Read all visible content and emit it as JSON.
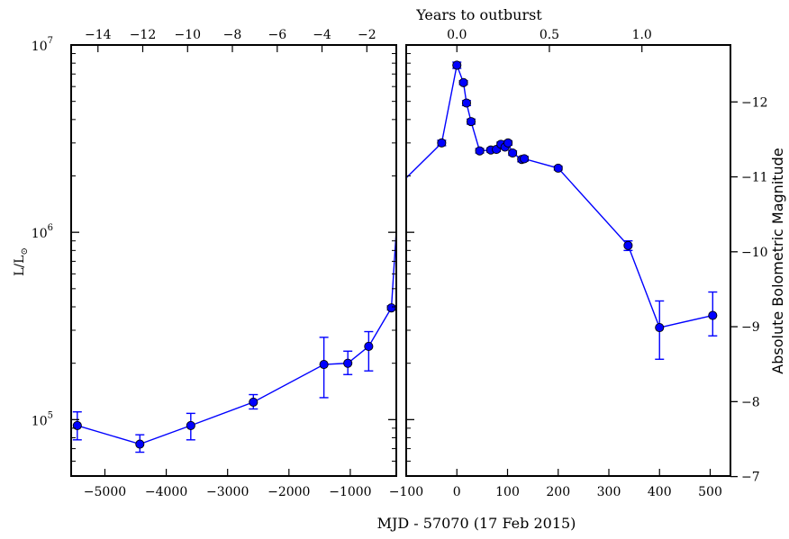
{
  "chart_data": {
    "type": "scatter",
    "top_axis_title": "Years to outburst",
    "shared_xlabel": "MJD - 57070 (17 Feb 2015)",
    "left_ylabel_main": "L/L",
    "left_ylabel_sub": "⊙",
    "right_ylabel": "Absolute Bolometric Magnitude",
    "series_color": "#0000ff",
    "marker_color": "#0000ff",
    "panels": [
      {
        "name": "left",
        "xlim": [
          -5550,
          -250
        ],
        "ylim": [
          50000,
          10000000
        ],
        "yscale": "log",
        "x_ticks": [
          -5000,
          -4000,
          -3000,
          -2000,
          -1000
        ],
        "x_tick_labels": [
          "−5000",
          "−4000",
          "−3000",
          "−2000",
          "−1000"
        ],
        "y_ticks": [
          100000,
          1000000,
          10000000
        ],
        "y_tick_labels": [
          {
            "base": "10",
            "exp": "5"
          },
          {
            "base": "10",
            "exp": "6"
          },
          {
            "base": "10",
            "exp": "7"
          }
        ],
        "top_ticks": [
          -5113,
          -4383,
          -3652,
          -2922,
          -2191,
          -1461,
          -730
        ],
        "top_tick_labels": [
          "−14",
          "−12",
          "−10",
          "−8",
          "−6",
          "−4",
          "−2"
        ],
        "points": [
          {
            "x": -5450,
            "y": 93000,
            "err_lo": 78000,
            "err_hi": 110000
          },
          {
            "x": -4430,
            "y": 74000,
            "err_lo": 67000,
            "err_hi": 83000
          },
          {
            "x": -3600,
            "y": 93000,
            "err_lo": 78000,
            "err_hi": 108000
          },
          {
            "x": -2580,
            "y": 124000,
            "err_lo": 114000,
            "err_hi": 136000
          },
          {
            "x": -1430,
            "y": 197000,
            "err_lo": 131000,
            "err_hi": 275000
          },
          {
            "x": -1040,
            "y": 200000,
            "err_lo": 174000,
            "err_hi": 232000
          },
          {
            "x": -700,
            "y": 246000,
            "err_lo": 182000,
            "err_hi": 295000
          },
          {
            "x": -330,
            "y": 395000,
            "err_lo": 385000,
            "err_hi": 405000
          }
        ],
        "line_extra": [
          {
            "x": -250,
            "y": 1020000
          }
        ]
      },
      {
        "name": "right",
        "xlim": [
          -100,
          540
        ],
        "ylim": [
          50000,
          10000000
        ],
        "yscale": "log",
        "x_ticks": [
          -100,
          0,
          100,
          200,
          300,
          400,
          500
        ],
        "x_tick_labels": [
          "−100",
          "0",
          "100",
          "200",
          "300",
          "400",
          "500"
        ],
        "top_ticks": [
          0,
          182.6,
          365.25
        ],
        "top_tick_labels": [
          "0.0",
          "0.5",
          "1.0"
        ],
        "right_ticks_mag": [
          -12,
          -11,
          -10,
          -9,
          -8,
          -7
        ],
        "right_tick_labels": [
          "−12",
          "−11",
          "−10",
          "−9",
          "−8",
          "−7"
        ],
        "points": [
          {
            "x": -30,
            "y": 3000000,
            "err_lo": 2900000,
            "err_hi": 3100000
          },
          {
            "x": 0,
            "y": 7800000,
            "err_lo": 7500000,
            "err_hi": 8100000
          },
          {
            "x": 13,
            "y": 6300000,
            "err_lo": 6150000,
            "err_hi": 6450000
          },
          {
            "x": 19,
            "y": 4900000,
            "err_lo": 4750000,
            "err_hi": 5050000
          },
          {
            "x": 28,
            "y": 3900000,
            "err_lo": 3780000,
            "err_hi": 4020000
          },
          {
            "x": 45,
            "y": 2720000,
            "err_lo": 2650000,
            "err_hi": 2800000
          },
          {
            "x": 67,
            "y": 2750000,
            "err_lo": 2680000,
            "err_hi": 2820000
          },
          {
            "x": 78,
            "y": 2770000,
            "err_lo": 2700000,
            "err_hi": 2840000
          },
          {
            "x": 87,
            "y": 2950000,
            "err_lo": 2870000,
            "err_hi": 3030000
          },
          {
            "x": 95,
            "y": 2850000,
            "err_lo": 2780000,
            "err_hi": 2920000
          },
          {
            "x": 101,
            "y": 3000000,
            "err_lo": 2920000,
            "err_hi": 3080000
          },
          {
            "x": 110,
            "y": 2650000,
            "err_lo": 2580000,
            "err_hi": 2720000
          },
          {
            "x": 128,
            "y": 2450000,
            "err_lo": 2380000,
            "err_hi": 2520000
          },
          {
            "x": 133,
            "y": 2470000,
            "err_lo": 2400000,
            "err_hi": 2540000
          },
          {
            "x": 200,
            "y": 2200000,
            "err_lo": 2150000,
            "err_hi": 2250000
          },
          {
            "x": 338,
            "y": 850000,
            "err_lo": 800000,
            "err_hi": 900000
          },
          {
            "x": 400,
            "y": 310000,
            "err_lo": 210000,
            "err_hi": 430000
          },
          {
            "x": 505,
            "y": 360000,
            "err_lo": 280000,
            "err_hi": 480000
          }
        ],
        "line_extra": [
          {
            "x": -100,
            "y": 1950000
          }
        ]
      }
    ]
  }
}
